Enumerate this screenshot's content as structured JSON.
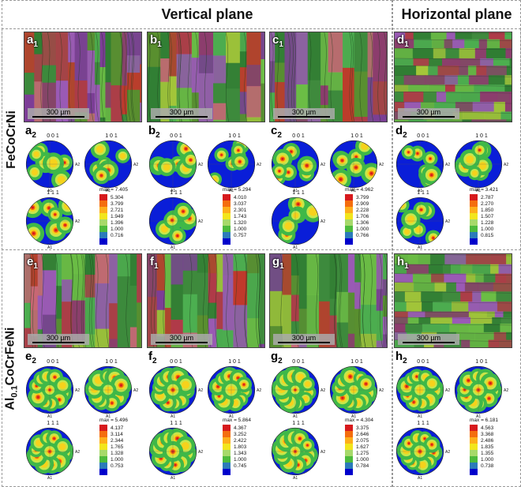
{
  "headers": {
    "vertical": "Vertical plane",
    "horizontal": "Horizontal plane"
  },
  "rows": [
    {
      "label": "FeCoCrNi",
      "panels": [
        {
          "id": "a",
          "micro": "a1",
          "pf": "a2",
          "scale_bar": "300 µm",
          "max": "max = 7.405",
          "ticks": [
            "5.304",
            "3.799",
            "2.721",
            "1.949",
            "1.396",
            "1.000",
            "0.716"
          ]
        },
        {
          "id": "b",
          "micro": "b1",
          "pf": "b2",
          "scale_bar": "300 µm",
          "max": "max = 5.294",
          "ticks": [
            "4.010",
            "3.037",
            "2.301",
            "1.743",
            "1.320",
            "1.000",
            "0.757"
          ]
        },
        {
          "id": "c",
          "micro": "c1",
          "pf": "c2",
          "scale_bar": "300 µm",
          "max": "max = 4.962",
          "ticks": [
            "3.799",
            "2.909",
            "2.228",
            "1.706",
            "1.306",
            "1.000",
            "0.766"
          ]
        },
        {
          "id": "d",
          "micro": "d1",
          "pf": "d2",
          "scale_bar": "300 µm",
          "max": "max = 3.421",
          "ticks": [
            "2.787",
            "2.270",
            "1.850",
            "1.507",
            "1.228",
            "1.000",
            "0.815"
          ]
        }
      ]
    },
    {
      "label": "Al0.1CoCrFeNi",
      "label_parts": {
        "pre": "Al",
        "sub": "0.1",
        "post": "CoCrFeNi"
      },
      "panels": [
        {
          "id": "e",
          "micro": "e1",
          "pf": "e2",
          "scale_bar": "300 µm",
          "max": "max = 5.496",
          "ticks": [
            "4.137",
            "3.114",
            "2.344",
            "1.765",
            "1.328",
            "1.000",
            "0.753"
          ]
        },
        {
          "id": "f",
          "micro": "f1",
          "pf": "f2",
          "scale_bar": "300 µm",
          "max": "max = 5.864",
          "ticks": [
            "4.367",
            "3.252",
            "2.422",
            "1.803",
            "1.343",
            "1.000",
            "0.745"
          ]
        },
        {
          "id": "g",
          "micro": "g1",
          "pf": "g2",
          "scale_bar": "300 µm",
          "max": "max = 4.304",
          "ticks": [
            "3.375",
            "2.646",
            "2.075",
            "1.627",
            "1.275",
            "1.000",
            "0.784"
          ]
        },
        {
          "id": "h",
          "micro": "h1",
          "pf": "h2",
          "scale_bar": "300 µm",
          "max": "max = 6.181",
          "ticks": [
            "4.563",
            "3.368",
            "2.486",
            "1.835",
            "1.355",
            "1.000",
            "0.738"
          ]
        }
      ]
    }
  ],
  "pole_titles": [
    "0 0 1",
    "1 0 1",
    "1 1 1"
  ],
  "axis_labels": {
    "a1": "A1",
    "a2": "A2"
  },
  "colors": {
    "scale": [
      "#d7191c",
      "#f46d0e",
      "#fdae1a",
      "#f2e51c",
      "#a6d96a",
      "#4dbb3c",
      "#2b7bba",
      "#0000cc"
    ],
    "micro_palette": [
      "#3c8a3c",
      "#4caf50",
      "#c0392b",
      "#8e3b6e",
      "#9b59b6",
      "#2e7d32",
      "#b03a48",
      "#6bbd45",
      "#cc6677",
      "#5a8f2f",
      "#7d3c98",
      "#a4c639"
    ],
    "micro_palette_h": [
      "#3c8a3c",
      "#4caf50",
      "#b03a48",
      "#6bbd45",
      "#8e3b6e",
      "#2e7d32",
      "#a4c639",
      "#9b59b6"
    ]
  }
}
